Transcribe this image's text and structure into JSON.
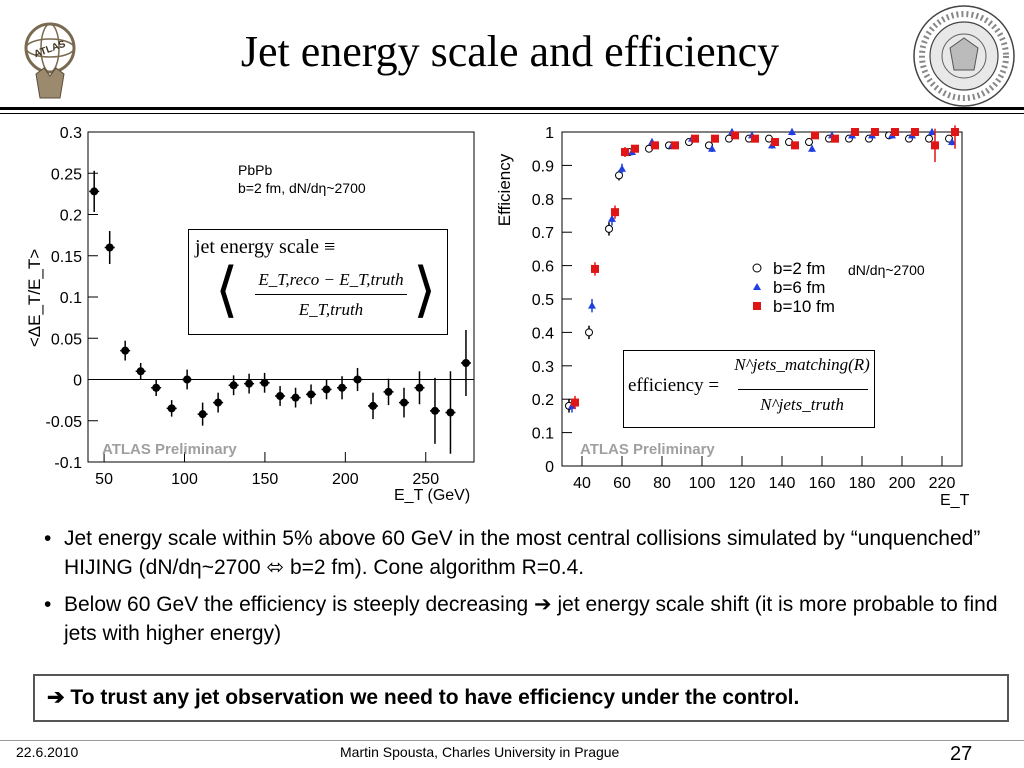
{
  "title": "Jet energy scale and efficiency",
  "logos": {
    "left": "atlas-logo",
    "left_text": "ATLAS",
    "right": "faculty-seal",
    "right_text": "FACULTAS MATHEMATICA PHYSICAQUE"
  },
  "bullets": [
    {
      "text": "Jet energy scale within 5% above 60 GeV in the most central collisions simulated by “unquenched” HIJING (dN/dη~2700 ⬄ b=2 fm). Cone algorithm R=0.4."
    },
    {
      "text": "Below 60 GeV the efficiency is steeply decreasing ➔ jet energy scale shift (it is more probable to find jets with higher energy)"
    }
  ],
  "callout": "➔ To trust any jet observation we need to have efficiency under the control.",
  "footer": {
    "date": "22.6.2010",
    "author": "Martin Spousta,  Charles University in Prague",
    "page": "27"
  },
  "chart_data": [
    {
      "type": "scatter",
      "title": "",
      "xlabel": "E_T (GeV)",
      "ylabel": "<ΔE_T/E_T>",
      "xlim": [
        40,
        280
      ],
      "ylim": [
        -0.1,
        0.3
      ],
      "xticks": [
        "50",
        "100",
        "150",
        "200",
        "250"
      ],
      "yticks": [
        "-0.1",
        "-0.05",
        "0",
        "0.05",
        "0.1",
        "0.15",
        "0.2",
        "0.25",
        "0.3"
      ],
      "annotations": [
        "PbPb",
        "b=2 fm, dN/dη~2700",
        "ATLAS Preliminary"
      ],
      "formula": {
        "lhs": "jet energy scale ≡",
        "num": "E_T,reco − E_T,truth",
        "den": "E_T,truth"
      },
      "series": [
        {
          "points": [
            {
              "x": 42,
              "y": 0.228,
              "err": 0.025
            },
            {
              "x": 47,
              "y": 0.16,
              "err": 0.02
            },
            {
              "x": 52,
              "y": 0.035,
              "err": 0.012
            },
            {
              "x": 57,
              "y": 0.01,
              "err": 0.01
            },
            {
              "x": 62,
              "y": -0.01,
              "err": 0.01
            },
            {
              "x": 67,
              "y": -0.035,
              "err": 0.01
            },
            {
              "x": 72,
              "y": 0.0,
              "err": 0.012
            },
            {
              "x": 77,
              "y": -0.042,
              "err": 0.014
            },
            {
              "x": 82,
              "y": -0.028,
              "err": 0.012
            },
            {
              "x": 87,
              "y": -0.007,
              "err": 0.012
            },
            {
              "x": 92,
              "y": -0.005,
              "err": 0.012
            },
            {
              "x": 97,
              "y": -0.004,
              "err": 0.012
            },
            {
              "x": 102,
              "y": -0.02,
              "err": 0.012
            },
            {
              "x": 107,
              "y": -0.022,
              "err": 0.012
            },
            {
              "x": 112,
              "y": -0.018,
              "err": 0.012
            },
            {
              "x": 117,
              "y": -0.012,
              "err": 0.012
            },
            {
              "x": 122,
              "y": -0.01,
              "err": 0.014
            },
            {
              "x": 127,
              "y": 0.0,
              "err": 0.014
            },
            {
              "x": 132,
              "y": -0.032,
              "err": 0.016
            },
            {
              "x": 137,
              "y": -0.015,
              "err": 0.016
            },
            {
              "x": 142,
              "y": -0.028,
              "err": 0.018
            },
            {
              "x": 147,
              "y": -0.01,
              "err": 0.02
            },
            {
              "x": 152,
              "y": -0.038,
              "err": 0.04
            },
            {
              "x": 157,
              "y": -0.04,
              "err": 0.05
            },
            {
              "x": 162,
              "y": 0.02,
              "err": 0.04
            }
          ]
        }
      ]
    },
    {
      "type": "scatter",
      "title": "",
      "xlabel": "E_T",
      "ylabel": "Efficiency",
      "xlim": [
        30,
        230
      ],
      "ylim": [
        0,
        1
      ],
      "xticks": [
        "40",
        "60",
        "80",
        "100",
        "120",
        "140",
        "160",
        "180",
        "200",
        "220"
      ],
      "yticks": [
        "0",
        "0.1",
        "0.2",
        "0.3",
        "0.4",
        "0.5",
        "0.6",
        "0.7",
        "0.8",
        "0.9",
        "1"
      ],
      "annotations": [
        "dN/dη~2700",
        "ATLAS Preliminary"
      ],
      "formula": {
        "lhs": "efficiency =",
        "num": "N^jets_matching(R)",
        "den": "N^jets_truth"
      },
      "legend": "right",
      "series": [
        {
          "name": "b=2 fm",
          "marker": "circle",
          "color": "#000000",
          "x": [
            35,
            45,
            55,
            60,
            65,
            75,
            85,
            95,
            105,
            115,
            125,
            135,
            145,
            155,
            165,
            175,
            185,
            195,
            205,
            215,
            225
          ],
          "y": [
            0.18,
            0.4,
            0.71,
            0.87,
            0.94,
            0.95,
            0.96,
            0.97,
            0.96,
            0.98,
            0.98,
            0.98,
            0.97,
            0.97,
            0.98,
            0.98,
            0.98,
            0.99,
            0.98,
            0.98,
            0.98
          ],
          "err": [
            0.02,
            0.02,
            0.02,
            0.015,
            0.01,
            0.01,
            0.01,
            0.01,
            0.01,
            0.01,
            0.01,
            0.01,
            0.01,
            0.01,
            0.01,
            0.01,
            0.01,
            0.01,
            0.01,
            0.01,
            0.01
          ]
        },
        {
          "name": "b=6 fm",
          "marker": "triangle",
          "color": "#1f3fe0",
          "x": [
            35,
            45,
            55,
            60,
            65,
            75,
            85,
            95,
            105,
            115,
            125,
            135,
            145,
            155,
            165,
            175,
            185,
            195,
            205,
            215,
            225
          ],
          "y": [
            0.18,
            0.48,
            0.74,
            0.89,
            0.94,
            0.97,
            0.96,
            0.98,
            0.95,
            1.0,
            0.99,
            0.96,
            1.0,
            0.95,
            0.99,
            0.99,
            0.99,
            0.99,
            0.99,
            1.0,
            0.97
          ],
          "err": [
            0.02,
            0.02,
            0.02,
            0.015,
            0.01,
            0.01,
            0.01,
            0.01,
            0.01,
            0.01,
            0.01,
            0.01,
            0.01,
            0.01,
            0.01,
            0.01,
            0.01,
            0.01,
            0.01,
            0.01,
            0.01
          ]
        },
        {
          "name": "b=10 fm",
          "marker": "square",
          "color": "#e01515",
          "x": [
            35,
            45,
            55,
            60,
            65,
            75,
            85,
            95,
            105,
            115,
            125,
            135,
            145,
            155,
            165,
            175,
            185,
            195,
            205,
            215,
            225
          ],
          "y": [
            0.19,
            0.59,
            0.76,
            0.94,
            0.95,
            0.96,
            0.96,
            0.98,
            0.98,
            0.99,
            0.98,
            0.97,
            0.96,
            0.99,
            0.98,
            1.0,
            1.0,
            1.0,
            1.0,
            0.96,
            1.0
          ],
          "err": [
            0.02,
            0.02,
            0.02,
            0.015,
            0.01,
            0.01,
            0.01,
            0.01,
            0.01,
            0.01,
            0.01,
            0.01,
            0.01,
            0.01,
            0.01,
            0.01,
            0.01,
            0.01,
            0.01,
            0.05,
            0.05
          ]
        }
      ]
    }
  ]
}
